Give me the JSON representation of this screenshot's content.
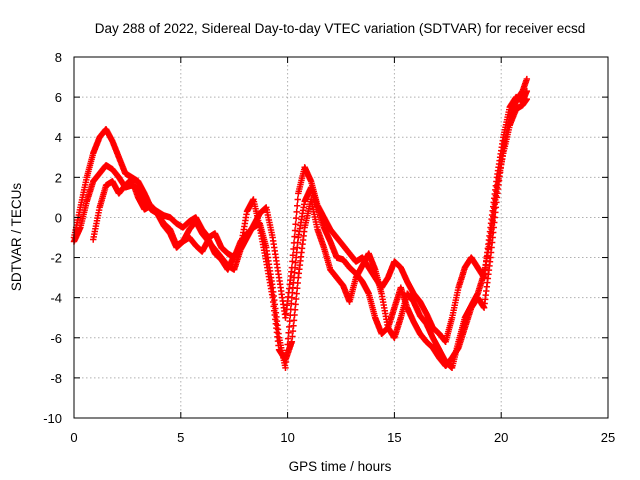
{
  "chart_data": {
    "type": "scatter",
    "title": "Day 288 of 2022, Sidereal Day-to-day VTEC variation (SDTVAR) for receiver ecsd",
    "xlabel": "GPS time / hours",
    "ylabel": "SDTVAR / TECUs",
    "xlim": [
      0,
      25
    ],
    "ylim": [
      -10,
      8
    ],
    "xticks": [
      0,
      5,
      10,
      15,
      20,
      25
    ],
    "yticks": [
      -10,
      -8,
      -6,
      -4,
      -2,
      0,
      2,
      4,
      6,
      8
    ],
    "grid": true,
    "marker": "+",
    "color": "#ff0000",
    "series": [
      {
        "name": "track-1",
        "x": [
          0,
          0.3,
          0.6,
          0.9,
          1.2,
          1.5,
          1.8,
          2.1,
          2.4,
          2.7,
          3.0,
          3.3,
          3.6,
          3.9,
          4.2,
          4.5,
          4.8,
          5.1,
          5.4,
          5.7,
          6.0,
          6.3,
          6.6,
          6.9,
          7.2,
          7.5,
          7.8,
          8.1,
          8.4,
          8.7,
          9.0,
          9.3,
          9.6,
          9.9,
          10.2,
          10.5,
          10.8,
          11.1,
          11.4,
          11.7,
          12.0,
          12.3,
          12.6,
          12.9,
          13.2,
          13.5,
          13.8,
          14.1,
          14.4,
          14.7,
          15.0,
          15.3,
          15.6,
          15.9,
          16.2,
          16.5,
          16.8,
          17.1,
          17.4,
          17.7,
          18.0,
          18.3,
          18.6,
          18.9,
          19.2,
          19.5,
          19.8,
          20.1,
          20.4,
          20.7,
          21.0,
          21.2
        ],
        "y": [
          -1.0,
          0.5,
          2.0,
          3.2,
          4.0,
          4.4,
          3.8,
          3.0,
          2.2,
          2.0,
          1.8,
          1.2,
          0.5,
          0.3,
          0.1,
          0.0,
          -0.3,
          -0.5,
          -0.2,
          0.0,
          -0.6,
          -1.0,
          -0.8,
          -1.5,
          -1.8,
          -2.0,
          -1.2,
          -0.8,
          -0.5,
          -0.3,
          -1.5,
          -3.5,
          -6.0,
          -7.5,
          -4.0,
          -1.0,
          0.8,
          1.5,
          0.5,
          -0.5,
          -1.2,
          -2.0,
          -2.1,
          -2.5,
          -2.8,
          -3.2,
          -3.8,
          -5.0,
          -5.8,
          -5.5,
          -4.5,
          -3.5,
          -4.5,
          -5.2,
          -5.8,
          -6.2,
          -6.5,
          -7.0,
          -7.4,
          -7.0,
          -6.5,
          -5.5,
          -4.5,
          -4.0,
          -4.5,
          -2.0,
          1.0,
          3.5,
          5.0,
          5.8,
          6.3,
          6.9
        ]
      },
      {
        "name": "track-2",
        "x": [
          0,
          0.3,
          0.6,
          0.9,
          1.2,
          1.5,
          1.8,
          2.1,
          2.4,
          2.7,
          3.0,
          3.3,
          3.6,
          3.9,
          4.2,
          4.5,
          4.8,
          5.1,
          5.4,
          5.7,
          6.0,
          6.3,
          6.6,
          6.9,
          7.2,
          7.5,
          7.8,
          8.1,
          8.4,
          8.7,
          9.0,
          9.3,
          9.6,
          9.9,
          10.2,
          10.5,
          10.8,
          11.1,
          11.4,
          11.7,
          12.0,
          12.3,
          12.6,
          12.9,
          13.2,
          13.5,
          13.8,
          14.1,
          14.4,
          14.7,
          15.0,
          15.3,
          15.6,
          15.9,
          16.2,
          16.5,
          16.8,
          17.1,
          17.4,
          17.7,
          18.0,
          18.3,
          18.6,
          18.9,
          19.2,
          19.5,
          19.8,
          20.1,
          20.4,
          20.7,
          21.0,
          21.2
        ],
        "y": [
          -1.2,
          -0.5,
          0.8,
          1.8,
          2.2,
          2.6,
          2.4,
          2.0,
          1.5,
          1.6,
          1.4,
          0.8,
          0.4,
          0.2,
          -0.4,
          -0.8,
          -1.5,
          -1.2,
          -0.6,
          -0.2,
          -0.8,
          -1.2,
          -1.6,
          -2.0,
          -2.4,
          -2.6,
          -1.6,
          -1.0,
          -0.4,
          0.2,
          0.5,
          -1.0,
          -3.0,
          -5.0,
          -2.5,
          1.2,
          2.5,
          1.8,
          0.6,
          0.0,
          -0.6,
          -1.0,
          -1.4,
          -1.8,
          -2.2,
          -2.0,
          -2.5,
          -3.0,
          -3.5,
          -3.0,
          -2.2,
          -2.5,
          -3.2,
          -3.8,
          -4.2,
          -4.8,
          -5.5,
          -5.8,
          -6.2,
          -5.0,
          -3.5,
          -2.5,
          -2.0,
          -2.5,
          -3.0,
          -0.5,
          2.0,
          4.0,
          5.5,
          6.0,
          5.8,
          6.3
        ]
      },
      {
        "name": "track-3",
        "x": [
          0.9,
          1.2,
          1.5,
          1.8,
          2.1,
          2.4,
          2.7,
          3.0,
          3.3,
          3.6,
          3.9,
          4.2,
          4.5,
          4.8,
          5.1,
          5.4,
          5.7,
          6.0,
          6.3,
          6.6,
          6.9,
          7.2,
          7.5,
          7.8,
          8.1,
          8.4,
          8.7,
          9.0,
          9.3,
          9.6,
          9.9,
          10.2,
          10.5,
          10.8,
          11.1,
          11.4,
          11.7,
          12.0,
          12.3,
          12.6,
          12.9,
          13.2,
          13.5,
          13.8,
          14.1,
          14.4,
          14.7,
          15.0,
          15.3,
          15.6,
          15.9,
          16.2,
          16.5,
          16.8,
          17.1,
          17.4,
          17.7,
          18.0,
          18.3,
          18.6,
          18.9,
          19.2,
          19.5,
          19.8,
          20.1,
          20.4,
          20.7,
          21.0,
          21.2
        ],
        "y": [
          -1.1,
          0.5,
          1.6,
          1.8,
          1.2,
          1.6,
          1.9,
          1.0,
          0.4,
          0.6,
          0.2,
          -0.3,
          -0.6,
          -1.4,
          -1.2,
          -1.0,
          -1.4,
          -1.7,
          -1.1,
          -1.8,
          -2.1,
          -2.6,
          -1.9,
          -1.5,
          0.3,
          0.9,
          -0.5,
          -2.2,
          -4.0,
          -6.6,
          -7.1,
          -6.2,
          -3.0,
          -0.5,
          0.9,
          -0.6,
          -1.5,
          -2.6,
          -3.0,
          -3.4,
          -4.2,
          -3.0,
          -2.4,
          -1.8,
          -2.6,
          -3.8,
          -5.5,
          -6.0,
          -5.0,
          -3.8,
          -4.2,
          -4.9,
          -5.3,
          -6.0,
          -6.6,
          -7.2,
          -7.5,
          -6.2,
          -5.0,
          -4.4,
          -3.8,
          -2.8,
          -1.0,
          1.5,
          3.2,
          4.6,
          5.4,
          5.6,
          5.9
        ]
      }
    ]
  }
}
